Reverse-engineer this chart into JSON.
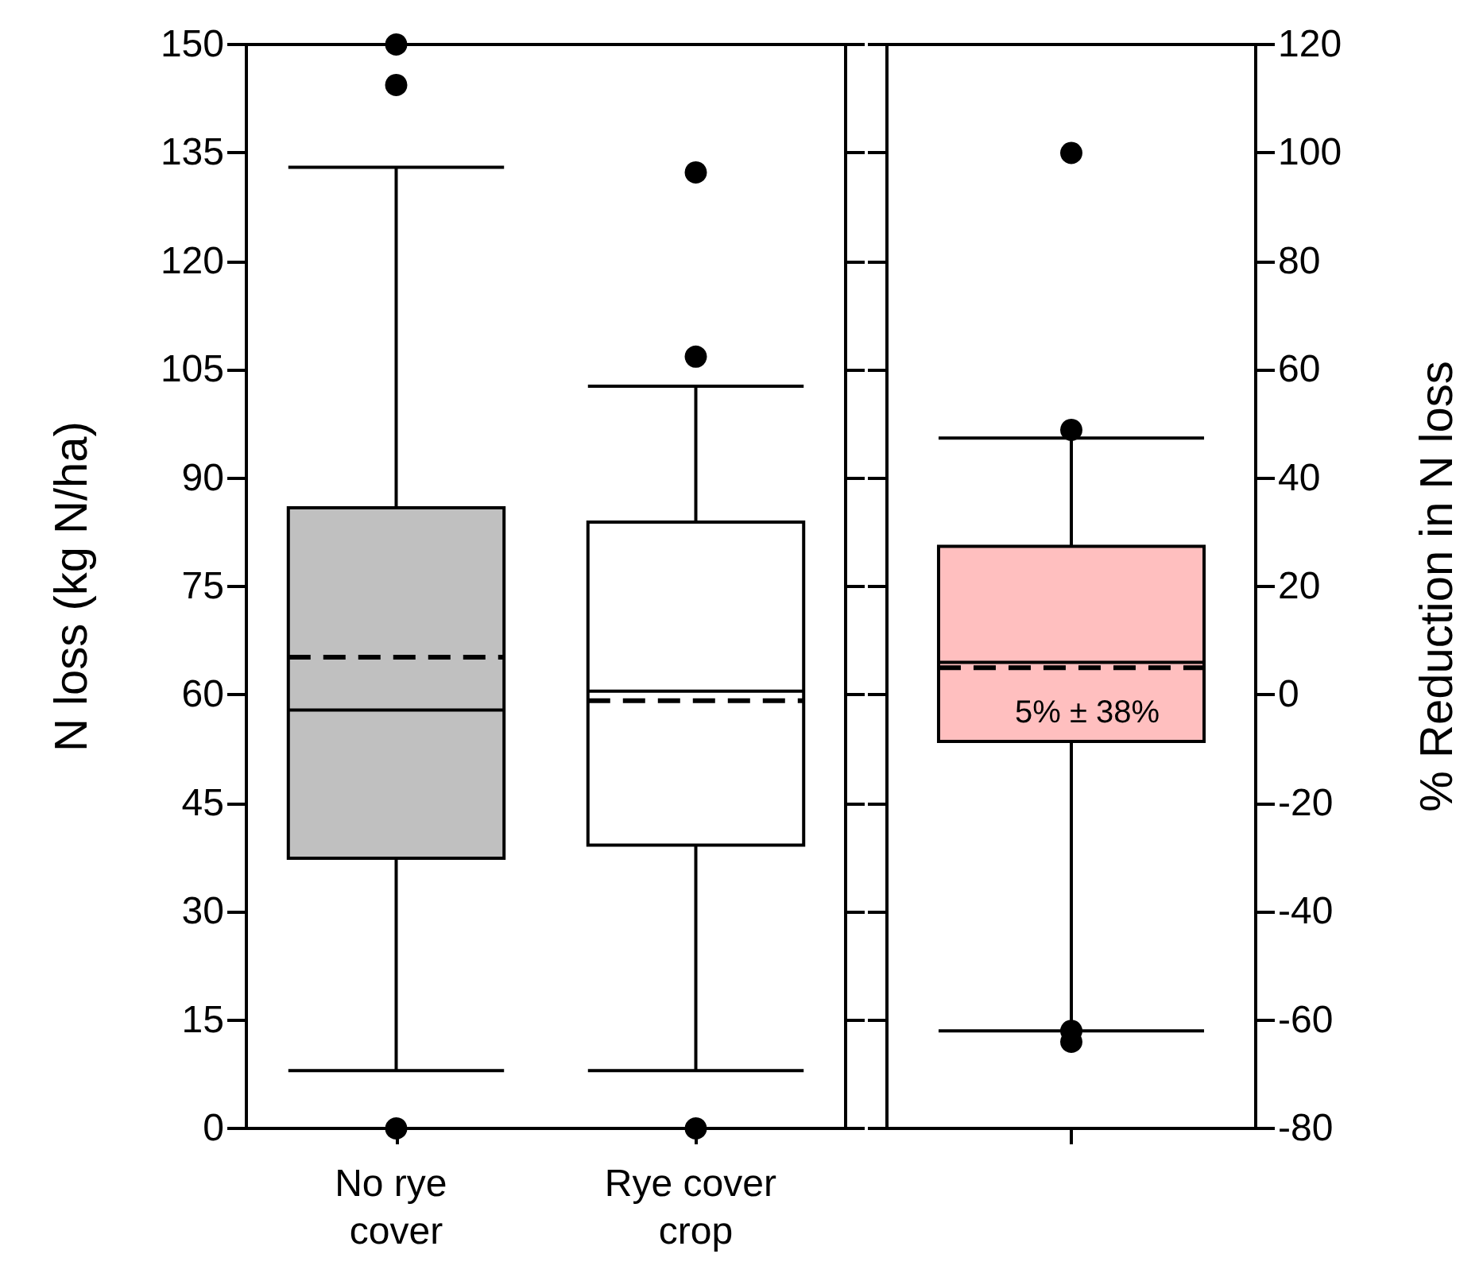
{
  "chart_data": [
    {
      "type": "box",
      "ylabel": "N loss (kg N/ha)",
      "categories": [
        "No rye cover",
        "Rye cover crop"
      ],
      "ylim": [
        0,
        150
      ],
      "yticks": [
        0,
        15,
        30,
        45,
        60,
        75,
        90,
        105,
        120,
        135,
        150
      ],
      "colors": [
        "#c0c0c0",
        "#ffffff"
      ],
      "grid": false,
      "boxes": [
        {
          "low": 8,
          "q1": 37.4,
          "median": 57.9,
          "q3": 85.9,
          "high": 133,
          "mean": 65.2,
          "outliers": [
            150,
            144.4,
            0
          ]
        },
        {
          "low": 8,
          "q1": 39.2,
          "median": 60.5,
          "q3": 83.9,
          "high": 102.7,
          "mean": 59.2,
          "outliers": [
            132.3,
            106.8,
            0
          ]
        }
      ]
    },
    {
      "type": "box",
      "y2label": "% Reduction in N loss",
      "categories": [
        null
      ],
      "y2lim": [
        -80,
        120
      ],
      "y2ticks": [
        -80,
        -60,
        -40,
        -20,
        0,
        20,
        40,
        60,
        80,
        100,
        120
      ],
      "grid": false,
      "annotations": [
        "5% ± 38%"
      ],
      "series": [
        {
          "axis": "y2",
          "color": "#ffbfbf",
          "boxes": [
            {
              "low": -62,
              "q1": -8.6,
              "median": 6,
              "q3": 27.4,
              "high": 47.4,
              "mean": 5,
              "outliers": [
                100,
                48.9,
                -62,
                -64
              ]
            }
          ]
        }
      ]
    }
  ]
}
